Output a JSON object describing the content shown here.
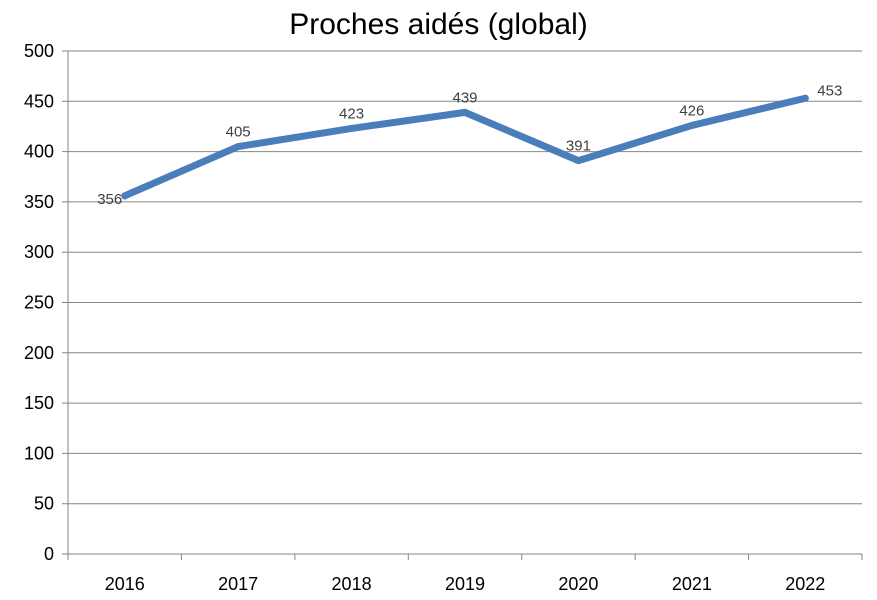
{
  "chart_data": {
    "type": "line",
    "title": "Proches aidés (global)",
    "xlabel": "",
    "ylabel": "",
    "categories": [
      "2016",
      "2017",
      "2018",
      "2019",
      "2020",
      "2021",
      "2022"
    ],
    "series": [
      {
        "values": [
          356,
          405,
          423,
          439,
          391,
          426,
          453
        ],
        "color": "#4a7ebb"
      }
    ],
    "ylim": [
      0,
      500
    ],
    "yticks": [
      0,
      50,
      100,
      150,
      200,
      250,
      300,
      350,
      400,
      450,
      500
    ],
    "grid": true,
    "legend": "none",
    "data_labels": true
  }
}
